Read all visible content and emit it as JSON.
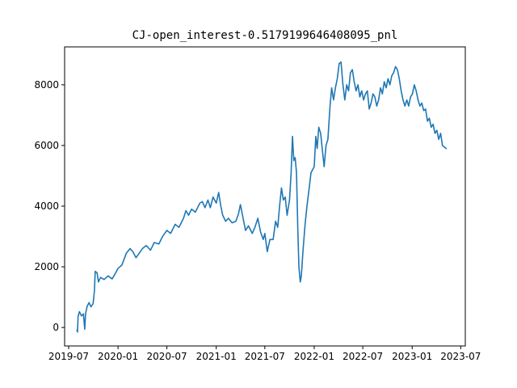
{
  "chart_data": {
    "type": "line",
    "title": "CJ-open_interest-0.5179199646408095_pnl",
    "xlabel": "",
    "ylabel": "",
    "grid": false,
    "legend": "none",
    "x_type": "date",
    "xlim": [
      "2019-06-16",
      "2023-07-18"
    ],
    "ylim": [
      -610,
      9250
    ],
    "x_ticks": [
      "2019-07",
      "2020-01",
      "2020-07",
      "2021-01",
      "2021-07",
      "2022-01",
      "2022-07",
      "2023-01",
      "2023-07"
    ],
    "x_tick_dates": [
      "2019-07-01",
      "2020-01-01",
      "2020-07-01",
      "2021-01-01",
      "2021-07-01",
      "2022-01-01",
      "2022-07-01",
      "2023-01-01",
      "2023-07-01"
    ],
    "y_ticks": [
      0,
      2000,
      4000,
      6000,
      8000
    ],
    "series": [
      {
        "name": "",
        "color": "#1f77b4",
        "points": [
          [
            "2019-08-01",
            -80
          ],
          [
            "2019-08-03",
            -150
          ],
          [
            "2019-08-05",
            350
          ],
          [
            "2019-08-10",
            520
          ],
          [
            "2019-08-18",
            380
          ],
          [
            "2019-08-25",
            450
          ],
          [
            "2019-08-30",
            -60
          ],
          [
            "2019-09-02",
            450
          ],
          [
            "2019-09-08",
            700
          ],
          [
            "2019-09-15",
            820
          ],
          [
            "2019-09-22",
            680
          ],
          [
            "2019-09-30",
            780
          ],
          [
            "2019-10-05",
            1200
          ],
          [
            "2019-10-08",
            1850
          ],
          [
            "2019-10-15",
            1800
          ],
          [
            "2019-10-20",
            1500
          ],
          [
            "2019-10-28",
            1650
          ],
          [
            "2019-11-10",
            1580
          ],
          [
            "2019-11-25",
            1700
          ],
          [
            "2019-12-10",
            1600
          ],
          [
            "2019-12-20",
            1750
          ],
          [
            "2020-01-01",
            1950
          ],
          [
            "2020-01-15",
            2050
          ],
          [
            "2020-02-01",
            2450
          ],
          [
            "2020-02-15",
            2600
          ],
          [
            "2020-02-25",
            2500
          ],
          [
            "2020-03-08",
            2300
          ],
          [
            "2020-03-20",
            2450
          ],
          [
            "2020-04-01",
            2600
          ],
          [
            "2020-04-15",
            2700
          ],
          [
            "2020-05-01",
            2550
          ],
          [
            "2020-05-15",
            2800
          ],
          [
            "2020-06-01",
            2750
          ],
          [
            "2020-06-15",
            3000
          ],
          [
            "2020-07-01",
            3200
          ],
          [
            "2020-07-15",
            3100
          ],
          [
            "2020-08-01",
            3400
          ],
          [
            "2020-08-15",
            3300
          ],
          [
            "2020-09-01",
            3600
          ],
          [
            "2020-09-10",
            3850
          ],
          [
            "2020-09-20",
            3700
          ],
          [
            "2020-10-01",
            3900
          ],
          [
            "2020-10-15",
            3800
          ],
          [
            "2020-11-01",
            4100
          ],
          [
            "2020-11-10",
            4150
          ],
          [
            "2020-11-20",
            3950
          ],
          [
            "2020-12-01",
            4200
          ],
          [
            "2020-12-10",
            3950
          ],
          [
            "2020-12-20",
            4300
          ],
          [
            "2021-01-01",
            4100
          ],
          [
            "2021-01-10",
            4450
          ],
          [
            "2021-01-18",
            4000
          ],
          [
            "2021-01-25",
            3700
          ],
          [
            "2021-02-05",
            3500
          ],
          [
            "2021-02-15",
            3600
          ],
          [
            "2021-03-01",
            3450
          ],
          [
            "2021-03-15",
            3500
          ],
          [
            "2021-03-25",
            3750
          ],
          [
            "2021-04-01",
            4050
          ],
          [
            "2021-04-10",
            3650
          ],
          [
            "2021-04-20",
            3200
          ],
          [
            "2021-05-01",
            3350
          ],
          [
            "2021-05-15",
            3100
          ],
          [
            "2021-05-25",
            3300
          ],
          [
            "2021-06-05",
            3600
          ],
          [
            "2021-06-15",
            3150
          ],
          [
            "2021-06-25",
            2900
          ],
          [
            "2021-07-01",
            3100
          ],
          [
            "2021-07-10",
            2500
          ],
          [
            "2021-07-20",
            2900
          ],
          [
            "2021-08-01",
            2900
          ],
          [
            "2021-08-10",
            3500
          ],
          [
            "2021-08-18",
            3300
          ],
          [
            "2021-08-25",
            4000
          ],
          [
            "2021-09-01",
            4600
          ],
          [
            "2021-09-08",
            4200
          ],
          [
            "2021-09-15",
            4300
          ],
          [
            "2021-09-22",
            3700
          ],
          [
            "2021-10-01",
            4200
          ],
          [
            "2021-10-07",
            5100
          ],
          [
            "2021-10-12",
            6300
          ],
          [
            "2021-10-17",
            5500
          ],
          [
            "2021-10-22",
            5600
          ],
          [
            "2021-10-27",
            5100
          ],
          [
            "2021-11-01",
            3200
          ],
          [
            "2021-11-05",
            2000
          ],
          [
            "2021-11-10",
            1500
          ],
          [
            "2021-11-14",
            1700
          ],
          [
            "2021-11-20",
            2500
          ],
          [
            "2021-11-28",
            3400
          ],
          [
            "2021-12-05",
            4000
          ],
          [
            "2021-12-12",
            4500
          ],
          [
            "2021-12-20",
            5100
          ],
          [
            "2022-01-01",
            5300
          ],
          [
            "2022-01-07",
            6300
          ],
          [
            "2022-01-12",
            5900
          ],
          [
            "2022-01-18",
            6600
          ],
          [
            "2022-01-25",
            6400
          ],
          [
            "2022-02-01",
            5800
          ],
          [
            "2022-02-07",
            5300
          ],
          [
            "2022-02-14",
            6000
          ],
          [
            "2022-02-21",
            6200
          ],
          [
            "2022-03-01",
            7300
          ],
          [
            "2022-03-07",
            7900
          ],
          [
            "2022-03-14",
            7500
          ],
          [
            "2022-03-21",
            7900
          ],
          [
            "2022-03-28",
            8200
          ],
          [
            "2022-04-04",
            8700
          ],
          [
            "2022-04-11",
            8750
          ],
          [
            "2022-04-18",
            8000
          ],
          [
            "2022-04-25",
            7500
          ],
          [
            "2022-05-02",
            8000
          ],
          [
            "2022-05-09",
            7800
          ],
          [
            "2022-05-16",
            8400
          ],
          [
            "2022-05-23",
            8500
          ],
          [
            "2022-05-30",
            8100
          ],
          [
            "2022-06-06",
            7800
          ],
          [
            "2022-06-13",
            8000
          ],
          [
            "2022-06-20",
            7600
          ],
          [
            "2022-06-27",
            7800
          ],
          [
            "2022-07-04",
            7500
          ],
          [
            "2022-07-11",
            7700
          ],
          [
            "2022-07-18",
            7800
          ],
          [
            "2022-07-25",
            7200
          ],
          [
            "2022-08-01",
            7400
          ],
          [
            "2022-08-08",
            7700
          ],
          [
            "2022-08-15",
            7600
          ],
          [
            "2022-08-22",
            7300
          ],
          [
            "2022-08-29",
            7500
          ],
          [
            "2022-09-05",
            7900
          ],
          [
            "2022-09-12",
            7700
          ],
          [
            "2022-09-19",
            8100
          ],
          [
            "2022-09-26",
            7900
          ],
          [
            "2022-10-03",
            8200
          ],
          [
            "2022-10-10",
            8000
          ],
          [
            "2022-10-17",
            8300
          ],
          [
            "2022-10-24",
            8400
          ],
          [
            "2022-10-31",
            8600
          ],
          [
            "2022-11-07",
            8500
          ],
          [
            "2022-11-14",
            8200
          ],
          [
            "2022-11-21",
            7800
          ],
          [
            "2022-11-28",
            7500
          ],
          [
            "2022-12-05",
            7300
          ],
          [
            "2022-12-12",
            7500
          ],
          [
            "2022-12-19",
            7300
          ],
          [
            "2022-12-26",
            7600
          ],
          [
            "2023-01-02",
            7700
          ],
          [
            "2023-01-09",
            8000
          ],
          [
            "2023-01-16",
            7800
          ],
          [
            "2023-01-23",
            7500
          ],
          [
            "2023-01-30",
            7300
          ],
          [
            "2023-02-06",
            7400
          ],
          [
            "2023-02-13",
            7150
          ],
          [
            "2023-02-20",
            7200
          ],
          [
            "2023-02-27",
            6800
          ],
          [
            "2023-03-06",
            6900
          ],
          [
            "2023-03-13",
            6600
          ],
          [
            "2023-03-20",
            6700
          ],
          [
            "2023-03-27",
            6400
          ],
          [
            "2023-04-03",
            6500
          ],
          [
            "2023-04-10",
            6200
          ],
          [
            "2023-04-17",
            6400
          ],
          [
            "2023-04-24",
            6000
          ],
          [
            "2023-05-01",
            5950
          ],
          [
            "2023-05-08",
            5900
          ]
        ]
      }
    ]
  }
}
